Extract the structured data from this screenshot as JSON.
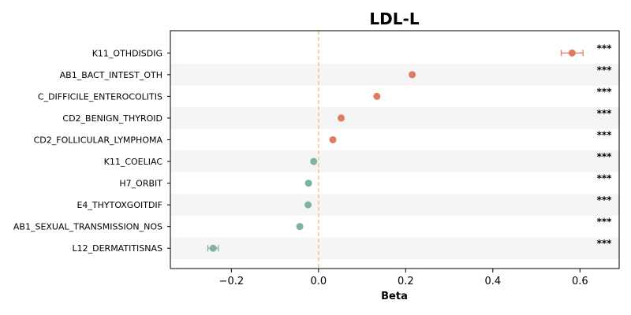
{
  "chart_data": {
    "type": "scatter",
    "title": "LDL-L",
    "xlabel": "Beta",
    "ylabel": "",
    "xlim": [
      -0.34,
      0.69
    ],
    "xticks": [
      -0.2,
      0.0,
      0.2,
      0.4,
      0.6
    ],
    "xtick_labels": [
      "−0.2",
      "0.0",
      "0.2",
      "0.4",
      "0.6"
    ],
    "reference_line": 0,
    "reference_color": "#f5c77e",
    "positive_color": "#e07b5f",
    "negative_color": "#7fb39a",
    "stripe_color": "#f5f5f5",
    "categories": [
      "K11_OTHDISDIG",
      "AB1_BACT_INTEST_OTH",
      "C_DIFFICILE_ENTEROCOLITIS",
      "CD2_BENIGN_THYROID",
      "CD2_FOLLICULAR_LYMPHOMA",
      "K11_COELIAC",
      "H7_ORBIT",
      "E4_THYTOXGOITDIF",
      "AB1_SEXUAL_TRANSMISSION_NOS",
      "L12_DERMATITISNAS"
    ],
    "values": [
      0.582,
      0.215,
      0.134,
      0.052,
      0.033,
      -0.011,
      -0.023,
      -0.024,
      -0.043,
      -0.242
    ],
    "ci_low": [
      0.557,
      0.213,
      0.132,
      0.05,
      0.031,
      -0.013,
      -0.025,
      -0.026,
      -0.045,
      -0.254
    ],
    "ci_high": [
      0.607,
      0.217,
      0.136,
      0.054,
      0.035,
      -0.009,
      -0.021,
      -0.022,
      -0.041,
      -0.23
    ],
    "significance": [
      "***",
      "***",
      "***",
      "***",
      "***",
      "***",
      "***",
      "***",
      "***",
      "***"
    ]
  }
}
